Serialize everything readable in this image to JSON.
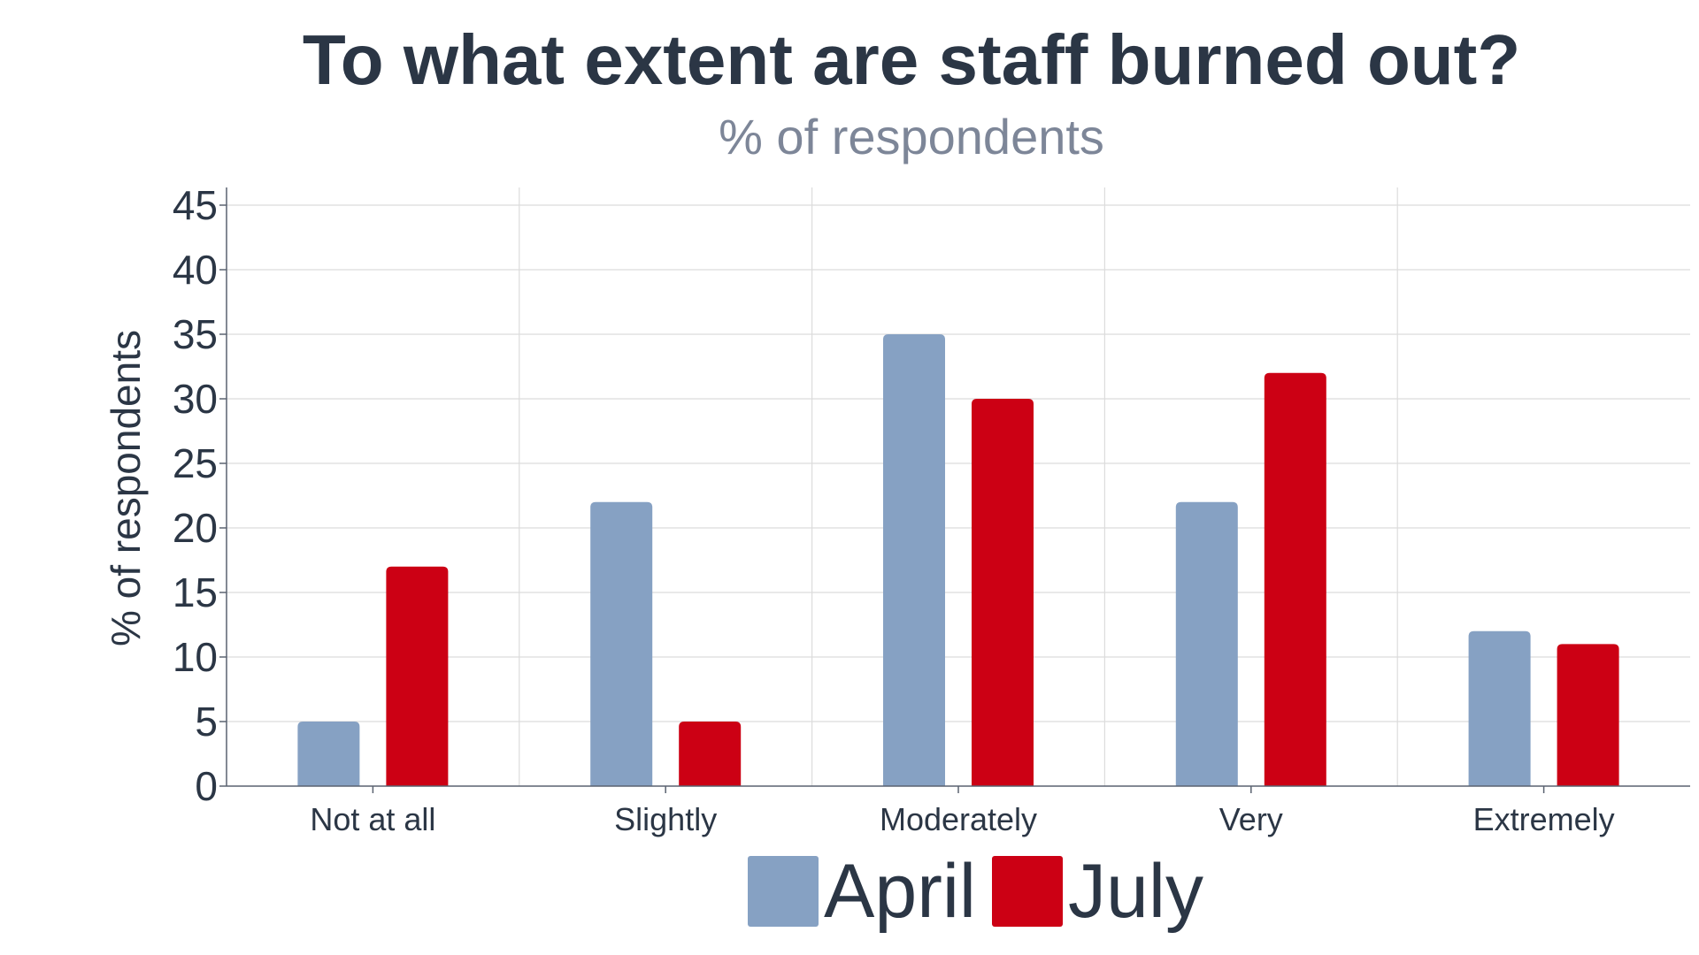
{
  "chart_data": {
    "type": "bar",
    "title": "To what extent are staff burned out?",
    "subtitle": "% of respondents",
    "ylabel": "% of respondents",
    "xlabel": "",
    "categories": [
      "Not at all",
      "Slightly",
      "Moderately",
      "Very",
      "Extremely"
    ],
    "series": [
      {
        "name": "April",
        "values": [
          5,
          22,
          35,
          22,
          12
        ],
        "color": "#86a1c3"
      },
      {
        "name": "July",
        "values": [
          17,
          5,
          30,
          32,
          11
        ],
        "color": "#cc0014"
      }
    ],
    "ylim": [
      0,
      45
    ],
    "yticks": [
      0,
      5,
      10,
      15,
      20,
      25,
      30,
      35,
      40,
      45
    ],
    "grid": true,
    "legend_position": "bottom-center"
  }
}
